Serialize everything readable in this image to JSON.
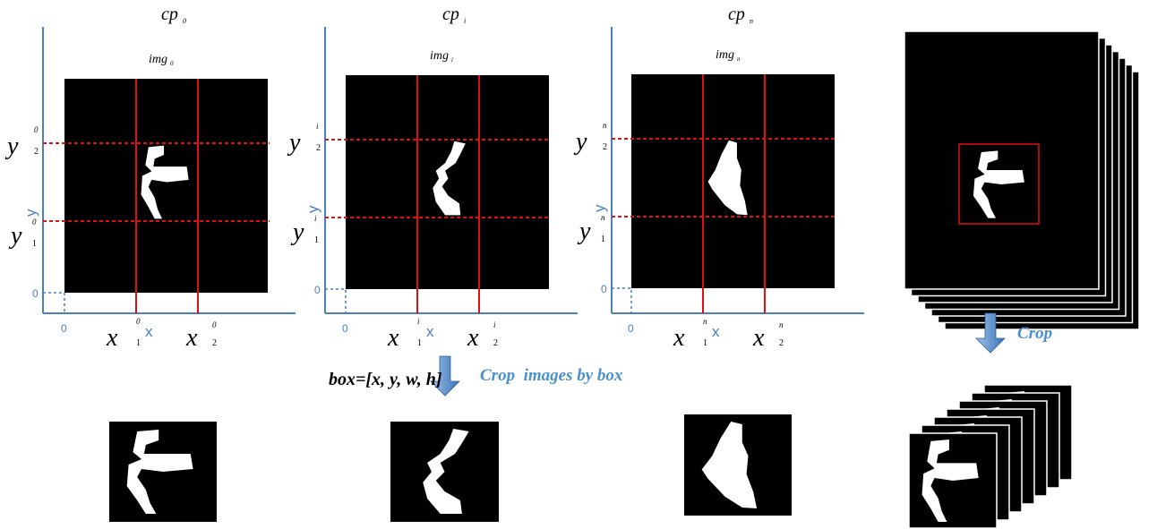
{
  "panels": [
    {
      "cp": "cp",
      "cp_index": "0",
      "img": "img",
      "img_index": "0",
      "y_top": "y",
      "y_top_sup": "0",
      "y_top_sub": "2",
      "y_bottom": "y",
      "y_bottom_sup": "0",
      "y_bottom_sub": "1",
      "x_left": "x",
      "x_left_sup": "0",
      "x_left_sub": "1",
      "x_right": "x",
      "x_right_sup": "0",
      "x_right_sub": "2",
      "axis_y": "y",
      "axis_x": "x",
      "origin_y": "0",
      "origin_x": "0"
    },
    {
      "cp": "cp",
      "cp_index": "i",
      "img": "img",
      "img_index": "i",
      "y_top": "y",
      "y_top_sup": "i",
      "y_top_sub": "2",
      "y_bottom": "y",
      "y_bottom_sup": "i",
      "y_bottom_sub": "1",
      "x_left": "x",
      "x_left_sup": "i",
      "x_left_sub": "1",
      "x_right": "x",
      "x_right_sup": "i",
      "x_right_sub": "2",
      "axis_y": "y",
      "axis_x": "x",
      "origin_y": "0",
      "origin_x": "0"
    },
    {
      "cp": "cp",
      "cp_index": "n",
      "img": "img",
      "img_index": "n",
      "y_top": "y",
      "y_top_sup": "n",
      "y_top_sub": "2",
      "y_bottom": "y",
      "y_bottom_sup": "n",
      "y_bottom_sub": "1",
      "x_left": "x",
      "x_left_sup": "n",
      "x_left_sub": "1",
      "x_right": "x",
      "x_right_sup": "n",
      "x_right_sub": "2",
      "axis_y": "y",
      "axis_x": "x",
      "origin_y": "0",
      "origin_x": "0"
    }
  ],
  "box_label": "box=[x, y, w, h]",
  "crop_by_box": "Crop  images by box",
  "crop": "Crop"
}
